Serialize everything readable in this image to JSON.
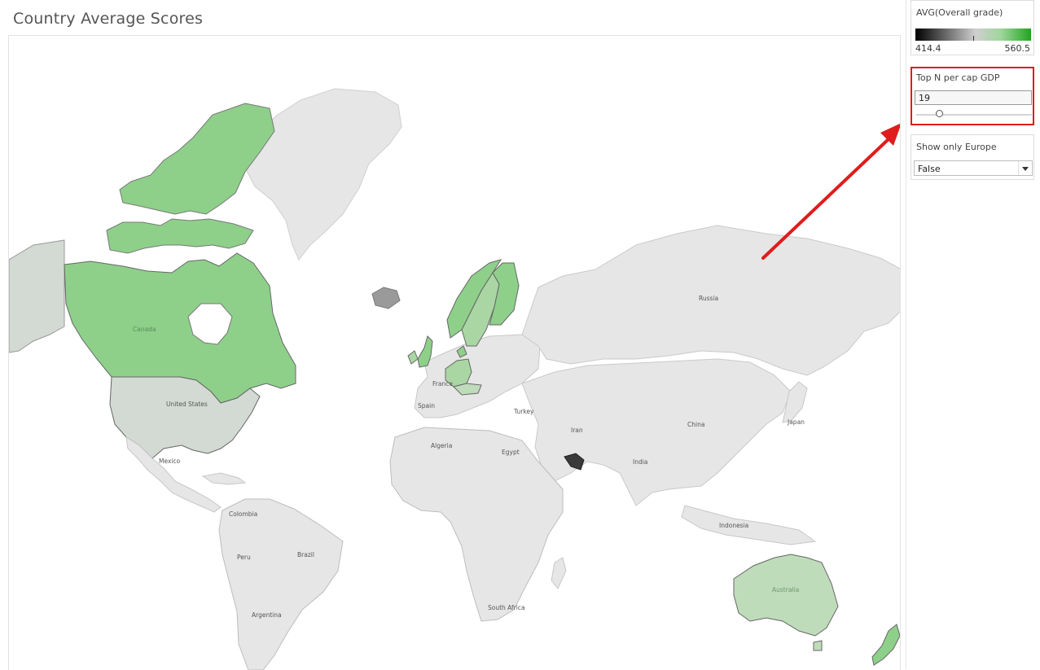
{
  "title": "Country Average Scores",
  "legend": {
    "title": "AVG(Overall grade)",
    "min_label": "414.4",
    "max_label": "560.5",
    "color_low": "#000000",
    "color_mid": "#cfcfcf",
    "color_high": "#1fa51f"
  },
  "top_n": {
    "title": "Top N per cap GDP",
    "value": "19",
    "slider_fraction": 0.2,
    "highlight_color": "#e01c1c"
  },
  "europe_filter": {
    "title": "Show only Europe",
    "selected": "False"
  },
  "map": {
    "labels": [
      "Russia",
      "Canada",
      "United States",
      "Mexico",
      "Colombia",
      "Peru",
      "Brazil",
      "Argentina",
      "Algeria",
      "Egypt",
      "Turkey",
      "Iran",
      "India",
      "China",
      "Japan",
      "Indonesia",
      "Australia",
      "South Africa",
      "France",
      "Spain"
    ],
    "colors": {
      "base_land": "#e4e4e4",
      "border": "#c4c4c4",
      "high_score": "#8ed08a",
      "mid_score": "#a9d6a3",
      "light_score": "#bfdcba",
      "low_score": "#d3d9d3",
      "dark_score": "#3a3a3a",
      "arrow": "#e01c1c"
    }
  }
}
